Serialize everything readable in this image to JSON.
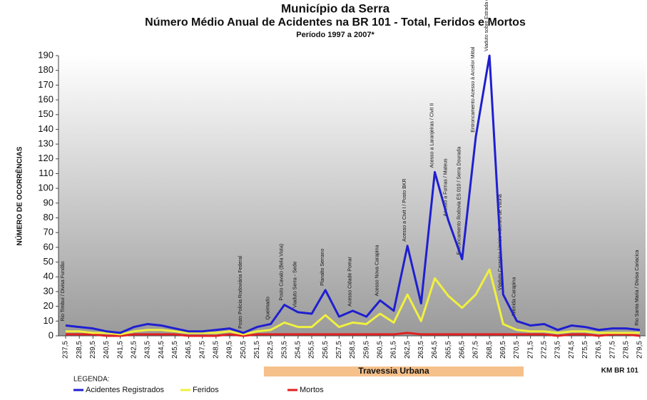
{
  "chart_data": {
    "type": "line",
    "title": "Município da Serra",
    "subtitle": "Número Médio Anual de Acidentes na BR 101 - Total, Feridos e Mortos",
    "period": "Período 1997 a 2007*",
    "y_label": "NÚMERO DE OCORRÊNCIAS",
    "x_label": "KM BR 101",
    "legend_title": "LEGENDA:",
    "categories": [
      "237,5",
      "238,5",
      "239,5",
      "240,5",
      "241,5",
      "242,5",
      "243,5",
      "244,5",
      "245,5",
      "246,5",
      "247,5",
      "248,5",
      "249,5",
      "250,5",
      "251,5",
      "252,5",
      "253,5",
      "254,5",
      "255,5",
      "256,5",
      "257,5",
      "258,5",
      "259,5",
      "260,5",
      "261,5",
      "262,5",
      "263,5",
      "264,5",
      "265,5",
      "266,5",
      "267,5",
      "268,5",
      "269,5",
      "270,5",
      "271,5",
      "272,5",
      "273,5",
      "274,5",
      "275,5",
      "276,5",
      "277,5",
      "278,5",
      "279,5"
    ],
    "series": [
      {
        "name": "Acidentes Registrados",
        "color": "#1f1fd0",
        "values": [
          7,
          6,
          5,
          3,
          2,
          6,
          8,
          7,
          5,
          3,
          3,
          4,
          5,
          2,
          6,
          8,
          21,
          16,
          15,
          31,
          13,
          17,
          13,
          24,
          17,
          61,
          22,
          111,
          78,
          52,
          135,
          190,
          28,
          10,
          7,
          8,
          4,
          7,
          6,
          4,
          5,
          5,
          4
        ]
      },
      {
        "name": "Feridos",
        "color": "#f0f040",
        "values": [
          3,
          3,
          2,
          2,
          1,
          3,
          4,
          4,
          3,
          2,
          2,
          2,
          3,
          1,
          3,
          4,
          9,
          6,
          6,
          14,
          6,
          9,
          8,
          15,
          9,
          28,
          10,
          39,
          27,
          19,
          28,
          45,
          8,
          4,
          3,
          3,
          2,
          3,
          3,
          2,
          2,
          2,
          2
        ]
      },
      {
        "name": "Mortos",
        "color": "#e02020",
        "values": [
          1,
          1,
          1,
          0,
          0,
          1,
          1,
          1,
          1,
          0,
          0,
          0,
          1,
          0,
          1,
          1,
          1,
          1,
          1,
          1,
          1,
          1,
          1,
          1,
          1,
          2,
          1,
          1,
          1,
          1,
          1,
          1,
          1,
          1,
          1,
          1,
          0,
          1,
          1,
          0,
          1,
          1,
          0
        ]
      }
    ],
    "ylim": [
      0,
      190
    ],
    "yticks": [
      0,
      10,
      20,
      30,
      40,
      50,
      60,
      70,
      80,
      90,
      100,
      110,
      120,
      130,
      140,
      150,
      160,
      170,
      180,
      190
    ],
    "grid": false,
    "band": {
      "label": "Travessia Urbana",
      "from": "252,5",
      "to": "270,5",
      "color": "#f5c08a"
    },
    "annotations": [
      {
        "category": "237,5",
        "text": "Rio Timbuí / Divisa Fundão"
      },
      {
        "category": "250,5",
        "text": "Posto Polícia Rodoviária Federal"
      },
      {
        "category": "252,5",
        "text": "Queimado"
      },
      {
        "category": "253,5",
        "text": "Posto Cavalo (Bela Vista)"
      },
      {
        "category": "254,5",
        "text": "Viaduto Serra - Sede"
      },
      {
        "category": "256,5",
        "text": "Planalto Serrano"
      },
      {
        "category": "258,5",
        "text": "Acesso Cidade Pomar"
      },
      {
        "category": "260,5",
        "text": "Acesso Nova Carapina"
      },
      {
        "category": "262,5",
        "text": "Acesso a Civit I / Posto BKR"
      },
      {
        "category": "264,5",
        "text": "Acesso a Laranjeiras / Civit II"
      },
      {
        "category": "265,5",
        "text": "Acesso a Furnas / Mateus"
      },
      {
        "category": "266,5",
        "text": "Entroncamento Rodovia ES 010 / Serra Dourada"
      },
      {
        "category": "267,5",
        "text": "Entroncamento Acesso à Arcelor Mittal"
      },
      {
        "category": "268,5",
        "text": "Viaduto sobre Estrada de Ferro Vitória-Minas - CVRD"
      },
      {
        "category": "269,5",
        "text": "Viaduto Carapina / Início nCentro de Vitória"
      },
      {
        "category": "270,5",
        "text": "Avenida Carapina"
      },
      {
        "category": "279,5",
        "text": "Rio Santa Maria / Divisa Cariacica"
      }
    ]
  }
}
